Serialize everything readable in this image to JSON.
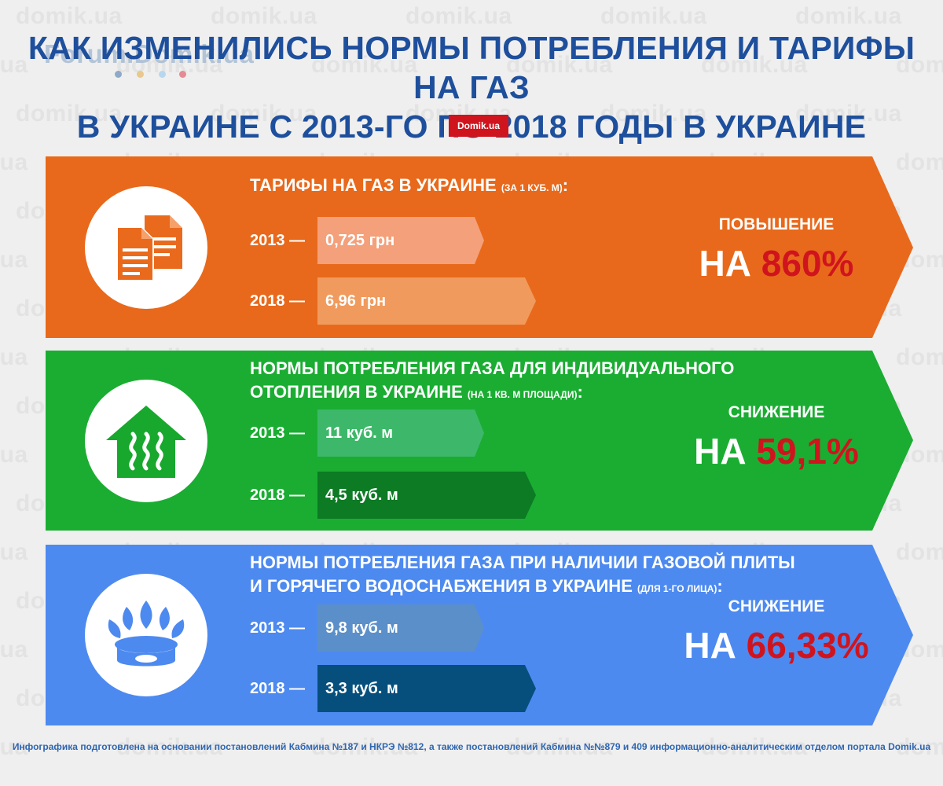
{
  "watermark": "domik.ua",
  "forum_logo": "Forum.Domik.ua",
  "title": {
    "line1": "Как изменились нормы потребления и тарифы на газ",
    "line2": "в Украине с 2013-го по 2018 годы в Украине"
  },
  "badge": "Domik.ua",
  "colors": {
    "title": "#1e4f9c",
    "accent_red": "#d0141e",
    "orange_panel": "#e8691b",
    "green_panel": "#1aad32",
    "blue_panel": "#4d8af0"
  },
  "panels": [
    {
      "icon": "documents-icon",
      "title_lines": [
        "Тарифы на газ в Украине",
        ""
      ],
      "title_note": "(за 1 куб. м)",
      "title_colon": ":",
      "rows": [
        {
          "year": "2013 —",
          "value": "0,725 грн",
          "bar_color": "#f4a07a"
        },
        {
          "year": "2018 —",
          "value": "6,96 грн",
          "bar_color": "#f09b5d"
        }
      ],
      "change_label": "Повышение",
      "change_prefix": "НА",
      "change_value": "860%"
    },
    {
      "icon": "house-heating-icon",
      "title_lines": [
        "Нормы потребления газа для индивидуального",
        "отопления в Украине"
      ],
      "title_note": "(на 1 кв. м площади)",
      "title_colon": ":",
      "rows": [
        {
          "year": "2013 —",
          "value": "11 куб. м",
          "bar_color": "#3db86a"
        },
        {
          "year": "2018 —",
          "value": "4,5 куб. м",
          "bar_color": "#0d7a24"
        }
      ],
      "change_label": "Снижение",
      "change_prefix": "НА",
      "change_value": "59,1%"
    },
    {
      "icon": "gas-burner-icon",
      "title_lines": [
        "Нормы потребления газа при наличии газовой плиты",
        "и горячего водоснабжения в Украине"
      ],
      "title_note": "(для 1-го лица)",
      "title_colon": ":",
      "rows": [
        {
          "year": "2013 —",
          "value": "9,8 куб. м",
          "bar_color": "#5b8fc9"
        },
        {
          "year": "2018 —",
          "value": "3,3 куб. м",
          "bar_color": "#064f7d"
        }
      ],
      "change_label": "Снижение",
      "change_prefix": "НА",
      "change_value": "66,33%"
    }
  ],
  "footer": "Инфографика подготовлена на основании постановлений Кабмина №187 и НКРЭ №812, а также постановлений Кабмина №№879 и 409 информационно-аналитическим отделом портала Domik.ua"
}
